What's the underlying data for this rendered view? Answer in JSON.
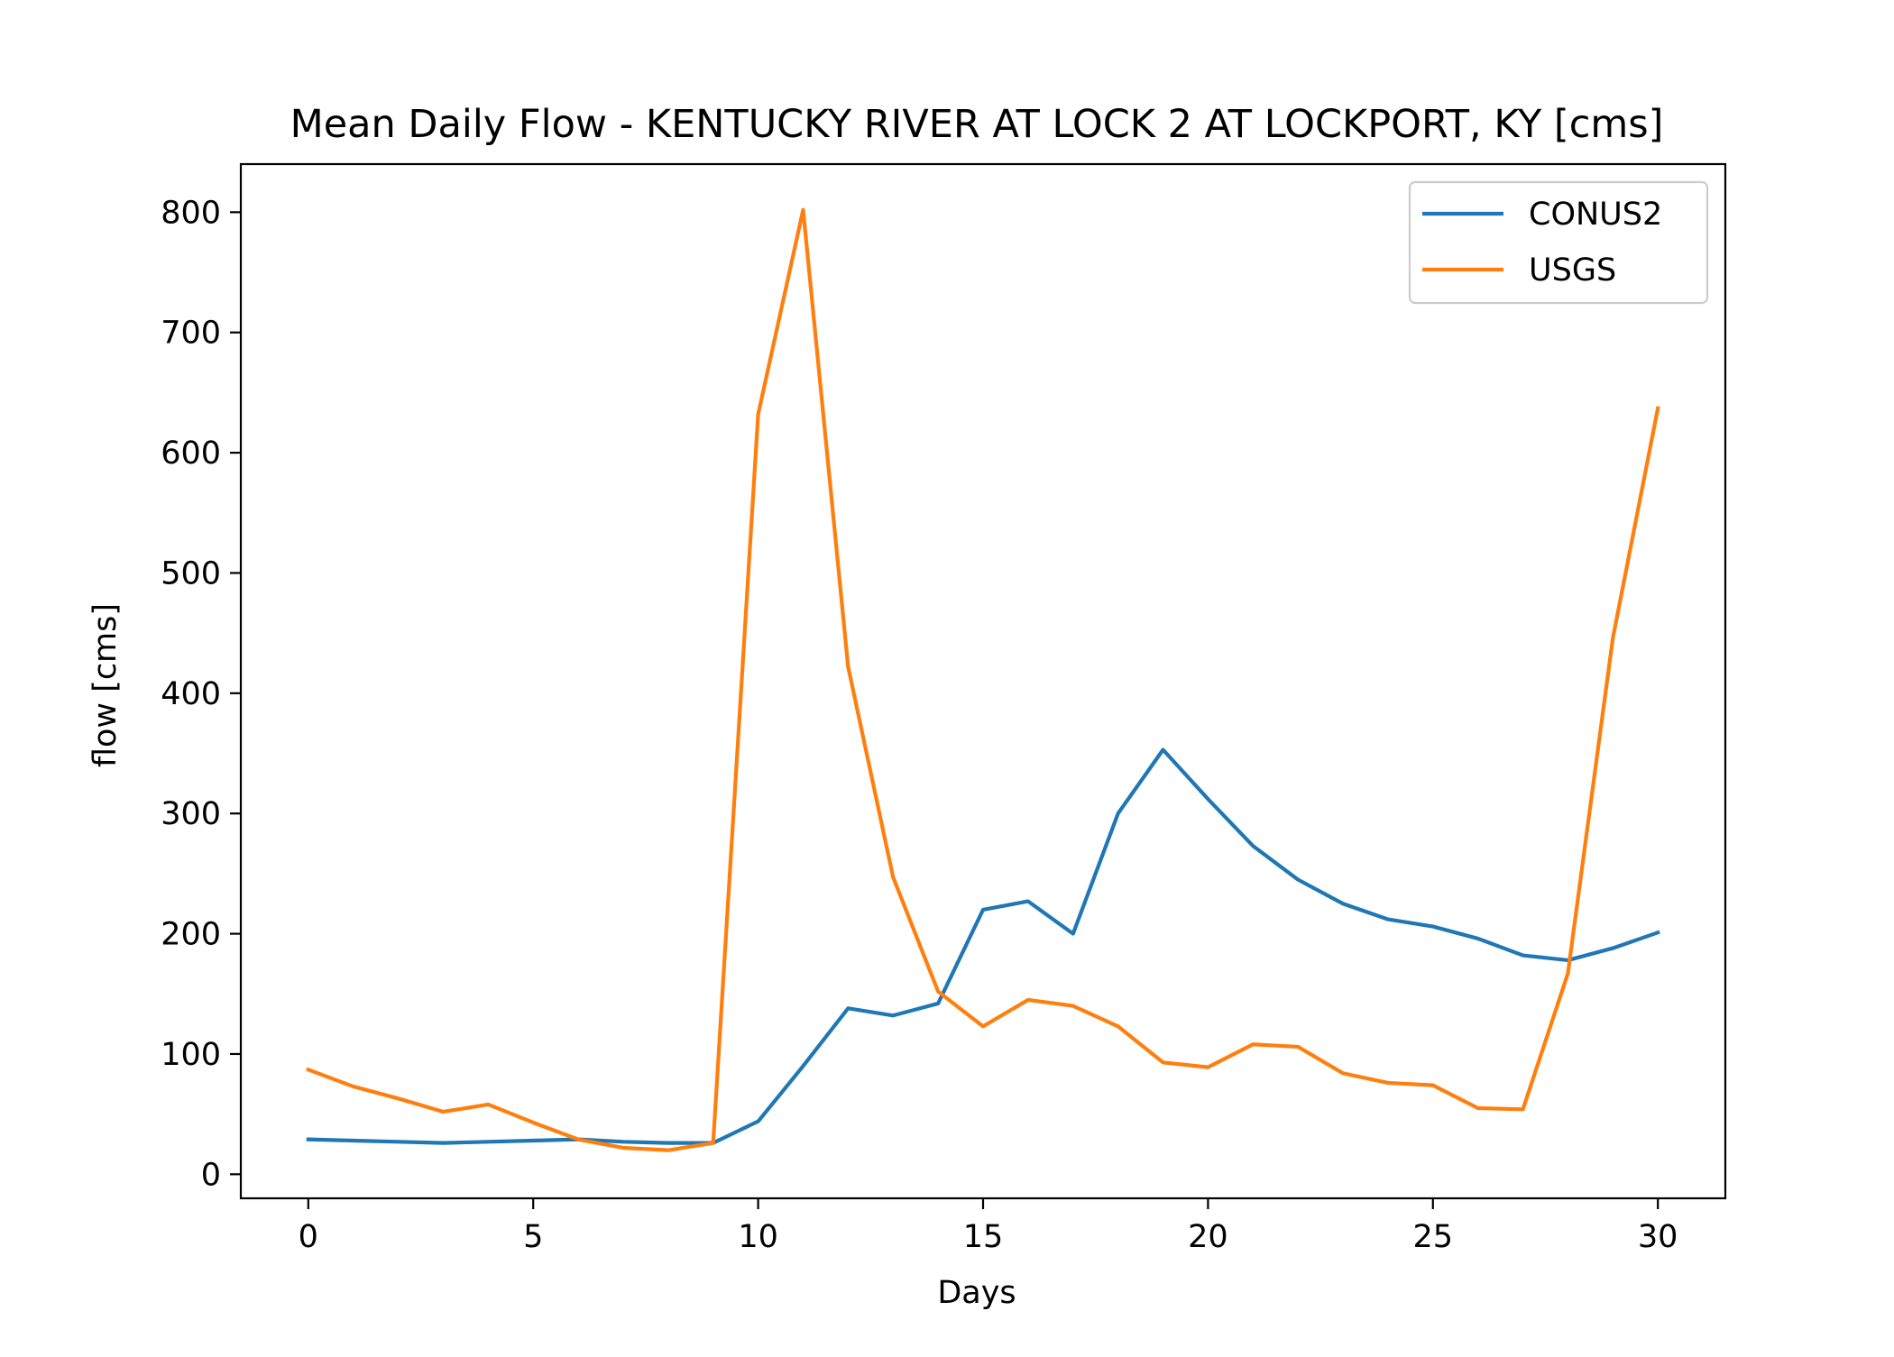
{
  "chart_data": {
    "type": "line",
    "title": "Mean Daily Flow - KENTUCKY RIVER AT LOCK 2 AT LOCKPORT, KY [cms]",
    "xlabel": "Days",
    "ylabel": "flow [cms]",
    "xlim": [
      -1.5,
      31.5
    ],
    "ylim": [
      -20,
      840
    ],
    "xticks": [
      0,
      5,
      10,
      15,
      20,
      25,
      30
    ],
    "yticks": [
      0,
      100,
      200,
      300,
      400,
      500,
      600,
      700,
      800
    ],
    "grid": false,
    "legend_position": "top-right",
    "x": [
      0,
      1,
      2,
      3,
      4,
      5,
      6,
      7,
      8,
      9,
      10,
      11,
      12,
      13,
      14,
      15,
      16,
      17,
      18,
      19,
      20,
      21,
      22,
      23,
      24,
      25,
      26,
      27,
      28,
      29,
      30
    ],
    "series": [
      {
        "name": "CONUS2",
        "color": "#1f77b4",
        "values": [
          29,
          28,
          27,
          26,
          27,
          28,
          29,
          27,
          26,
          26,
          44,
          90,
          138,
          132,
          142,
          220,
          227,
          200,
          300,
          353,
          312,
          273,
          245,
          225,
          212,
          206,
          196,
          182,
          178,
          188,
          201
        ]
      },
      {
        "name": "USGS",
        "color": "#ff7f0e",
        "values": [
          87,
          73,
          63,
          52,
          58,
          43,
          29,
          22,
          20,
          26,
          632,
          802,
          422,
          247,
          152,
          123,
          145,
          140,
          123,
          93,
          89,
          108,
          106,
          84,
          76,
          74,
          55,
          54,
          167,
          446,
          637
        ]
      }
    ]
  }
}
